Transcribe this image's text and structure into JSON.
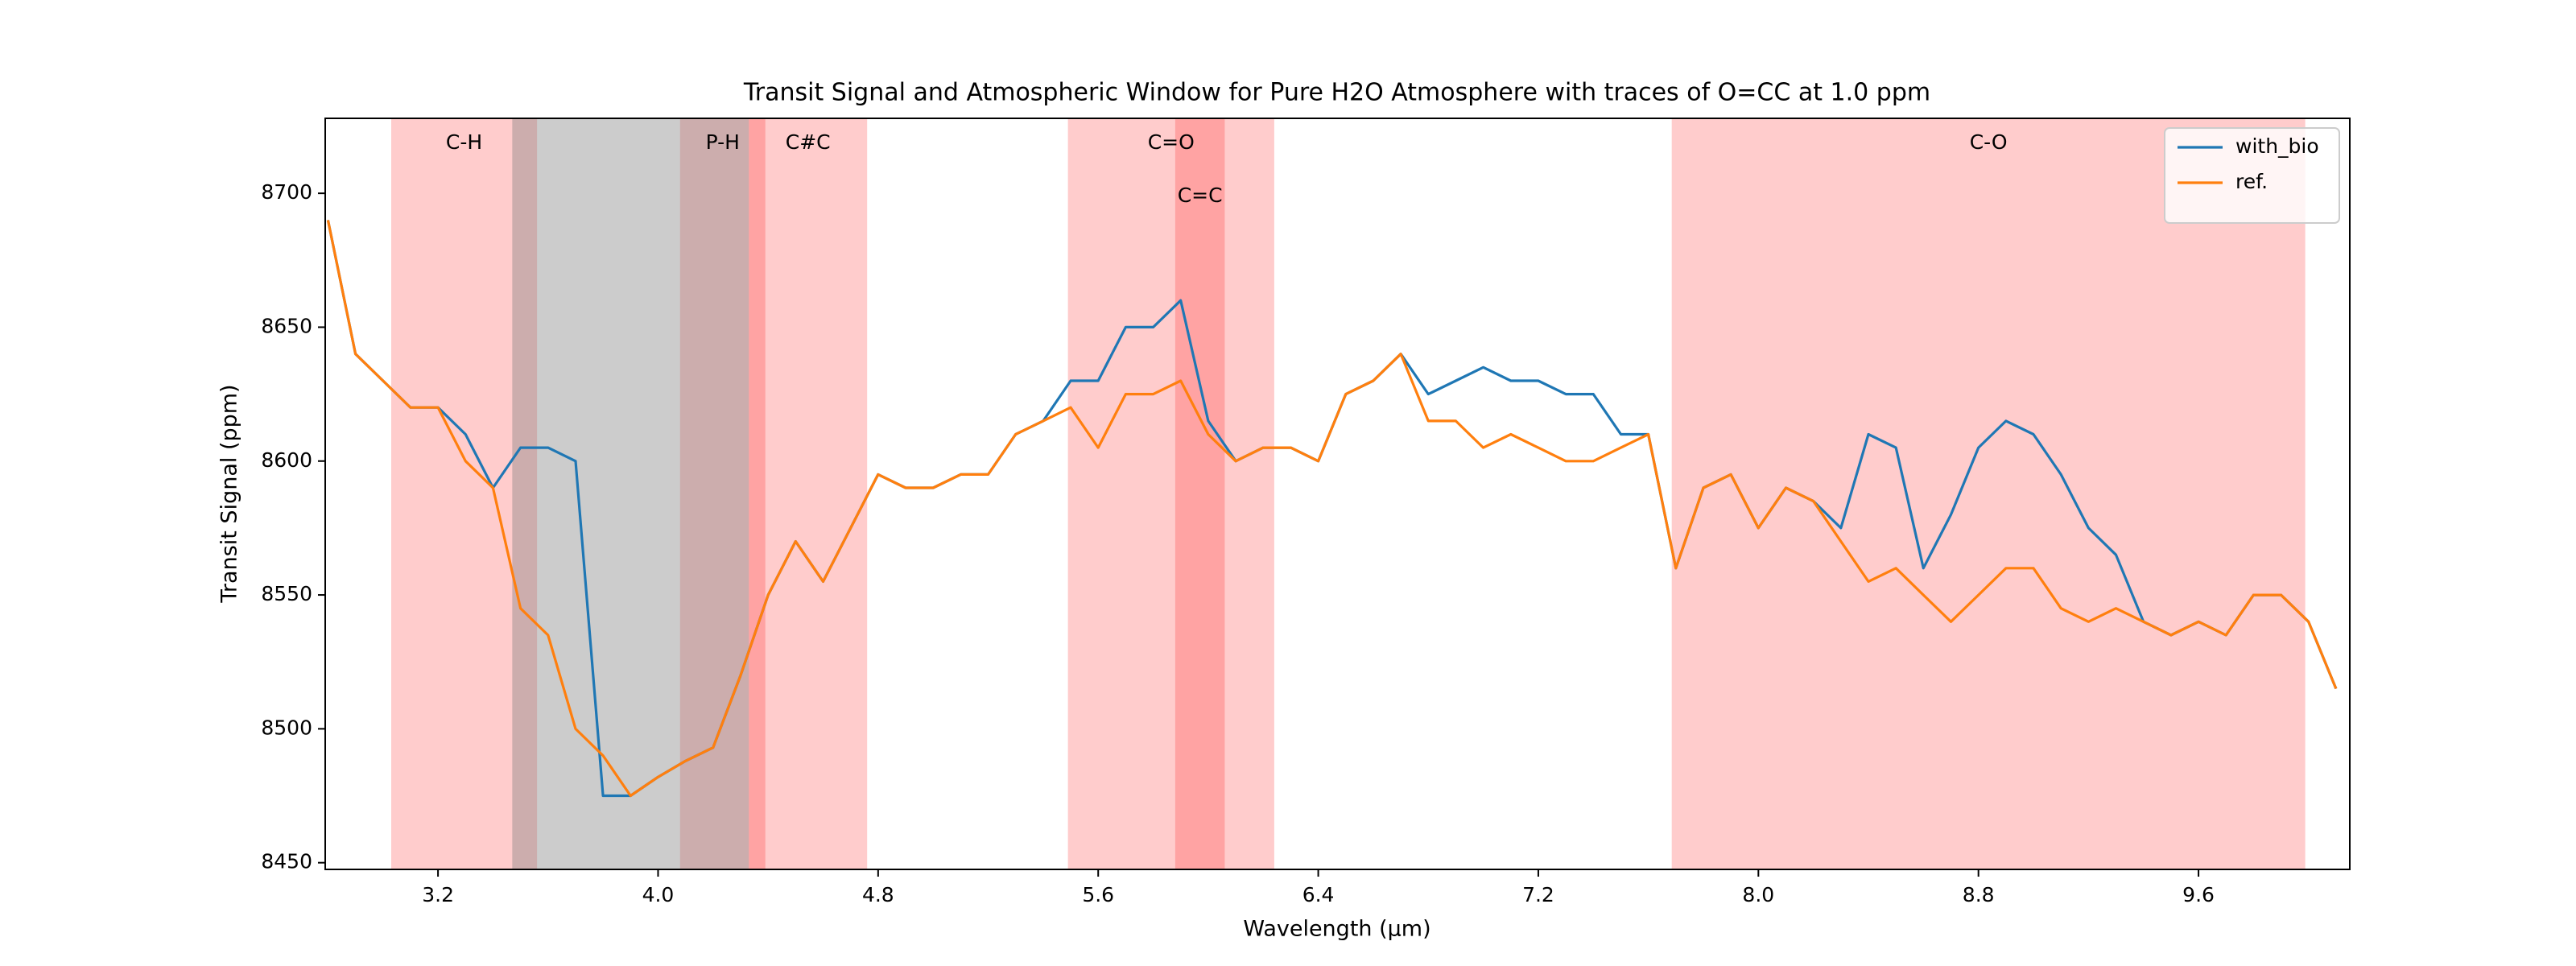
{
  "chart_data": {
    "type": "line",
    "title": "Transit Signal and Atmospheric Window for Pure H2O Atmosphere with traces of O=CC at 1.0 ppm",
    "x_label": "Wavelength (μm)",
    "y_label": "Transit Signal (ppm)",
    "xlim": [
      2.79,
      10.15
    ],
    "ylim": [
      8447.5,
      8728
    ],
    "xticks": [
      3.2,
      {
        "value": 4,
        "label": "4.0"
      },
      4.8,
      5.6,
      6.4,
      7.2,
      {
        "value": 8,
        "label": "8.0"
      },
      8.8,
      9.6
    ],
    "yticks": [
      8450,
      8500,
      8550,
      8600,
      8650,
      8700
    ],
    "legend": "upper right",
    "region_color": "#ff0000",
    "window_color": "#808080",
    "regions": [
      {
        "label": "C-H",
        "start": 3.03,
        "end": 3.56
      },
      {
        "label": "P-H",
        "start": 4.08,
        "end": 4.39
      },
      {
        "label": "C#C",
        "start": 4.33,
        "end": 4.76
      },
      {
        "label": "C=O",
        "start": 5.49,
        "end": 6.24
      },
      {
        "label": "C=C",
        "start": 5.88,
        "end": 6.06
      },
      {
        "label": "C-O",
        "start": 7.685,
        "end": 9.988
      }
    ],
    "windows": [
      {
        "start": 3.47,
        "end": 4.33
      }
    ],
    "x": [
      2.8,
      2.9,
      3.0,
      3.1,
      3.2,
      3.3,
      3.4,
      3.5,
      3.6,
      3.7,
      3.8,
      3.9,
      4.0,
      4.1,
      4.2,
      4.3,
      4.4,
      4.5,
      4.6,
      4.7,
      4.8,
      4.9,
      5.0,
      5.1,
      5.2,
      5.3,
      5.4,
      5.5,
      5.6,
      5.7,
      5.8,
      5.9,
      6.0,
      6.1,
      6.2,
      6.3,
      6.4,
      6.5,
      6.6,
      6.7,
      6.8,
      6.9,
      7.0,
      7.1,
      7.2,
      7.3,
      7.4,
      7.5,
      7.6,
      7.7,
      7.8,
      7.9,
      8.0,
      8.1,
      8.2,
      8.3,
      8.4,
      8.5,
      8.6,
      8.7,
      8.8,
      8.9,
      9.0,
      9.1,
      9.2,
      9.3,
      9.4,
      9.5,
      9.6,
      9.7,
      9.8,
      9.9,
      10.0,
      10.1
    ],
    "series": [
      {
        "name": "with_bio",
        "color": "#1f77b4",
        "values": [
          8690,
          8640,
          8630,
          8620,
          8620,
          8610,
          8590,
          8605,
          8605,
          8600,
          8475,
          8475,
          8482,
          8488,
          8493,
          8520,
          8550,
          8570,
          8555,
          8575,
          8595,
          8590,
          8590,
          8595,
          8595,
          8610,
          8615,
          8630,
          8630,
          8650,
          8650,
          8660,
          8615,
          8600,
          8605,
          8605,
          8600,
          8625,
          8630,
          8640,
          8625,
          8630,
          8635,
          8630,
          8630,
          8625,
          8625,
          8610,
          8610,
          8560,
          8590,
          8595,
          8575,
          8590,
          8585,
          8575,
          8610,
          8605,
          8560,
          8580,
          8605,
          8615,
          8610,
          8595,
          8575,
          8565,
          8540,
          8535,
          8540,
          8535,
          8550,
          8550,
          8540,
          8515
        ]
      },
      {
        "name": "ref.",
        "color": "#ff7f0e",
        "values": [
          8690,
          8640,
          8630,
          8620,
          8620,
          8600,
          8590,
          8545,
          8535,
          8500,
          8490,
          8475,
          8482,
          8488,
          8493,
          8520,
          8550,
          8570,
          8555,
          8575,
          8595,
          8590,
          8590,
          8595,
          8595,
          8610,
          8615,
          8620,
          8605,
          8625,
          8625,
          8630,
          8610,
          8600,
          8605,
          8605,
          8600,
          8625,
          8630,
          8640,
          8615,
          8615,
          8605,
          8610,
          8605,
          8600,
          8600,
          8605,
          8610,
          8560,
          8590,
          8595,
          8575,
          8590,
          8585,
          8570,
          8555,
          8560,
          8550,
          8540,
          8550,
          8560,
          8560,
          8545,
          8540,
          8545,
          8540,
          8535,
          8540,
          8535,
          8550,
          8550,
          8540,
          8515
        ]
      }
    ]
  }
}
